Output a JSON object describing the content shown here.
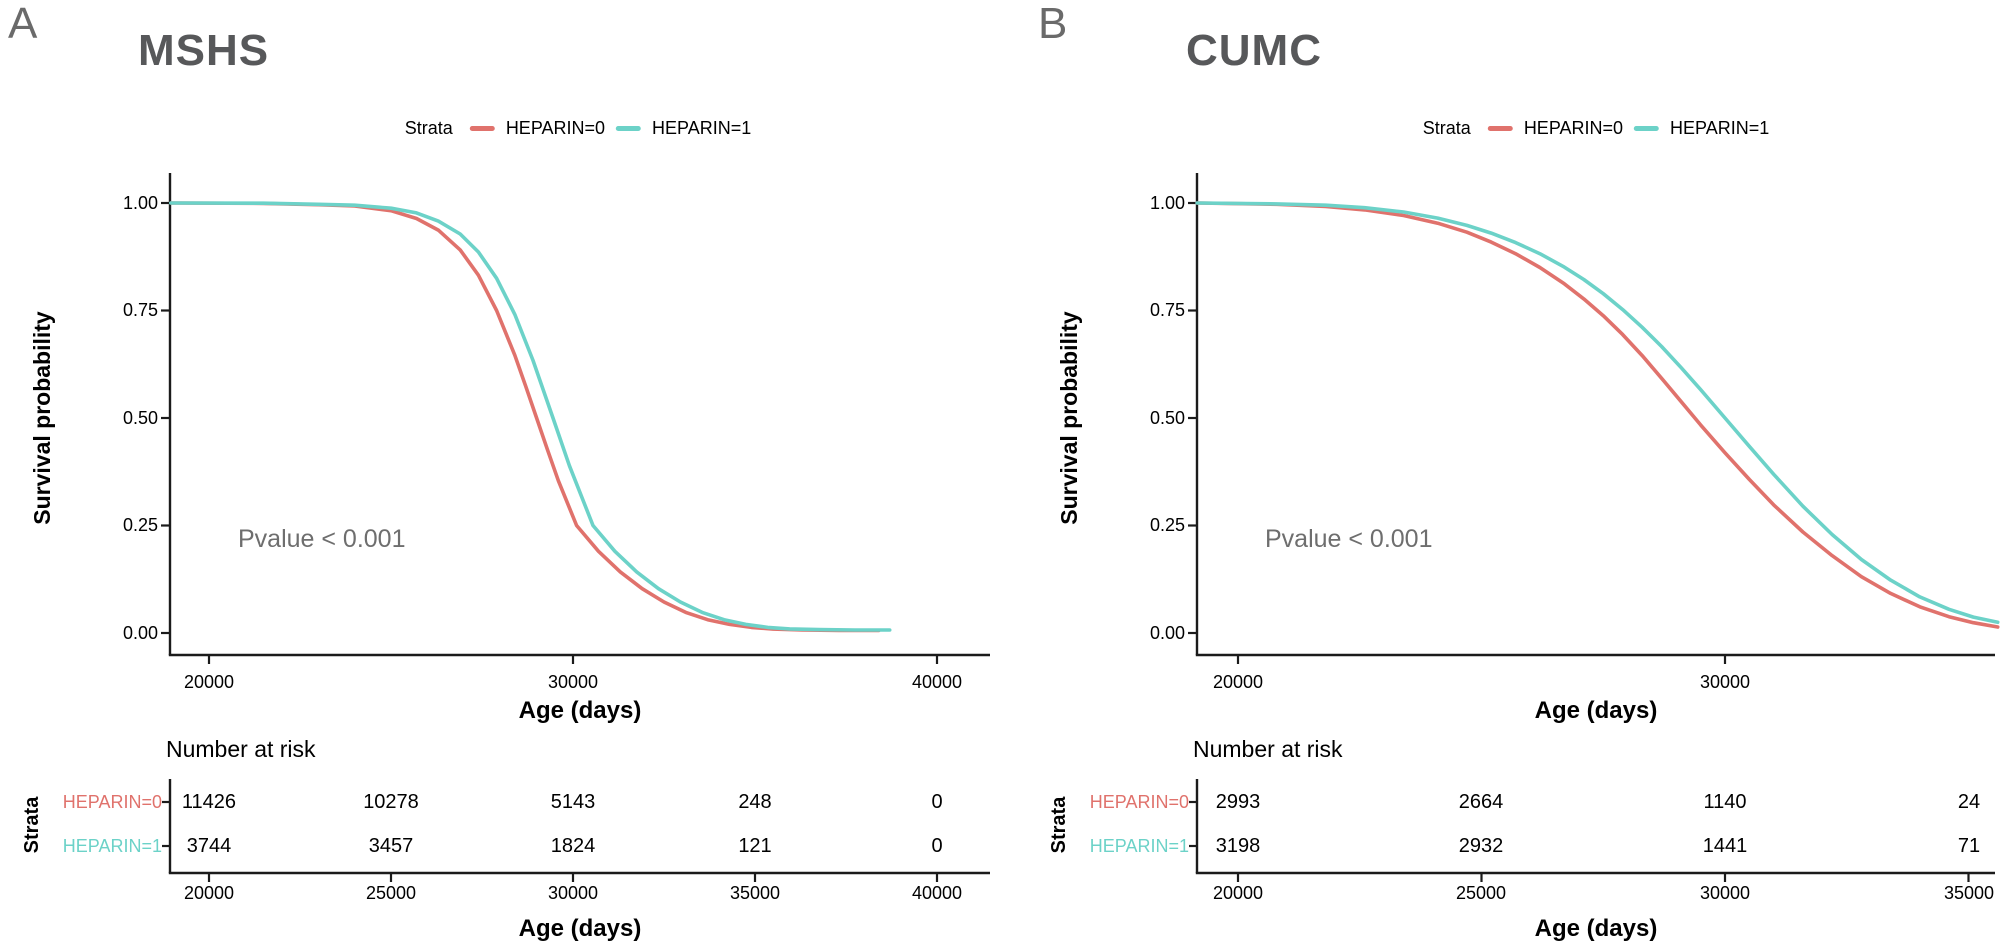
{
  "colors": {
    "heparin0": "#e0726c",
    "heparin1": "#6cd2c8",
    "axis": "#1b1b1b",
    "title_gray": "#57585a",
    "letter_gray": "#6a6a6a",
    "pvalue_gray": "#6e6e6e"
  },
  "panels": [
    {
      "letter": "A",
      "title": "MSHS",
      "legend": {
        "title": "Strata",
        "items": [
          {
            "label": "HEPARIN=0",
            "color": "#e0726c"
          },
          {
            "label": "HEPARIN=1",
            "color": "#6cd2c8"
          }
        ]
      },
      "ylabel": "Survival probability",
      "xlabel": "Age (days)",
      "pvalue": "Pvalue < 0.001",
      "y_ticks": [
        "1.00",
        "0.75",
        "0.50",
        "0.25",
        "0.00"
      ],
      "main_x_ticks": [
        {
          "value": 20000,
          "label": "20000"
        },
        {
          "value": 30000,
          "label": "30000"
        },
        {
          "value": 40000,
          "label": "40000"
        }
      ],
      "risk": {
        "header": "Number at risk",
        "axis_label": "Strata",
        "xlabel": "Age (days)",
        "rows": [
          {
            "label": "HEPARIN=0",
            "color": "#e0726c",
            "values": [
              "11426",
              "10278",
              "5143",
              "248",
              "0"
            ]
          },
          {
            "label": "HEPARIN=1",
            "color": "#6cd2c8",
            "values": [
              "3744",
              "3457",
              "1824",
              "121",
              "0"
            ]
          }
        ],
        "x_ticks": [
          {
            "value": 20000,
            "label": "20000"
          },
          {
            "value": 25000,
            "label": "25000"
          },
          {
            "value": 30000,
            "label": "30000"
          },
          {
            "value": 35000,
            "label": "35000"
          },
          {
            "value": 40000,
            "label": "40000"
          }
        ]
      }
    },
    {
      "letter": "B",
      "title": "CUMC",
      "legend": {
        "title": "Strata",
        "items": [
          {
            "label": "HEPARIN=0",
            "color": "#e0726c"
          },
          {
            "label": "HEPARIN=1",
            "color": "#6cd2c8"
          }
        ]
      },
      "ylabel": "Survival probability",
      "xlabel": "Age (days)",
      "pvalue": "Pvalue < 0.001",
      "y_ticks": [
        "1.00",
        "0.75",
        "0.50",
        "0.25",
        "0.00"
      ],
      "main_x_ticks": [
        {
          "value": 20000,
          "label": "20000"
        },
        {
          "value": 30000,
          "label": "30000"
        }
      ],
      "risk": {
        "header": "Number at risk",
        "axis_label": "Strata",
        "xlabel": "Age (days)",
        "rows": [
          {
            "label": "HEPARIN=0",
            "color": "#e0726c",
            "values": [
              "2993",
              "2664",
              "1140",
              "24"
            ]
          },
          {
            "label": "HEPARIN=1",
            "color": "#6cd2c8",
            "values": [
              "3198",
              "2932",
              "1441",
              "71"
            ]
          }
        ],
        "x_ticks": [
          {
            "value": 20000,
            "label": "20000"
          },
          {
            "value": 25000,
            "label": "25000"
          },
          {
            "value": 30000,
            "label": "30000"
          },
          {
            "value": 35000,
            "label": "35000"
          }
        ]
      }
    }
  ],
  "chart_data": [
    {
      "type": "line",
      "subtype": "kaplan-meier-survival",
      "title": "MSHS",
      "xlabel": "Age (days)",
      "ylabel": "Survival probability",
      "xlim": [
        18950,
        41400
      ],
      "ylim": [
        0,
        1
      ],
      "x_tick_values": [
        20000,
        30000,
        40000
      ],
      "y_tick_values": [
        1.0,
        0.75,
        0.5,
        0.25,
        0.0
      ],
      "annotation": "Pvalue < 0.001",
      "legend_position": "top",
      "grid": false,
      "series": [
        {
          "name": "HEPARIN=0",
          "color": "#e0726c",
          "points": [
            [
              18950,
              1.0
            ],
            [
              21500,
              0.999
            ],
            [
              23000,
              0.996
            ],
            [
              24000,
              0.993
            ],
            [
              25000,
              0.982
            ],
            [
              25700,
              0.964
            ],
            [
              26300,
              0.937
            ],
            [
              26900,
              0.891
            ],
            [
              27400,
              0.832
            ],
            [
              27900,
              0.75
            ],
            [
              28400,
              0.646
            ],
            [
              28700,
              0.574
            ],
            [
              29000,
              0.5
            ],
            [
              29300,
              0.426
            ],
            [
              29600,
              0.354
            ],
            [
              30100,
              0.25
            ],
            [
              30700,
              0.19
            ],
            [
              31300,
              0.142
            ],
            [
              31900,
              0.103
            ],
            [
              32500,
              0.072
            ],
            [
              33100,
              0.048
            ],
            [
              33700,
              0.031
            ],
            [
              34300,
              0.02
            ],
            [
              34900,
              0.013
            ],
            [
              35500,
              0.009
            ],
            [
              36300,
              0.007
            ],
            [
              37300,
              0.006
            ],
            [
              38400,
              0.006
            ]
          ]
        },
        {
          "name": "HEPARIN=1",
          "color": "#6cd2c8",
          "points": [
            [
              18950,
              1.0
            ],
            [
              21500,
              0.9995
            ],
            [
              23000,
              0.997
            ],
            [
              24000,
              0.995
            ],
            [
              25000,
              0.988
            ],
            [
              25700,
              0.977
            ],
            [
              26300,
              0.958
            ],
            [
              26900,
              0.928
            ],
            [
              27400,
              0.886
            ],
            [
              27900,
              0.825
            ],
            [
              28400,
              0.741
            ],
            [
              28900,
              0.634
            ],
            [
              29450,
              0.5
            ],
            [
              29900,
              0.389
            ],
            [
              30550,
              0.25
            ],
            [
              31150,
              0.19
            ],
            [
              31750,
              0.142
            ],
            [
              32350,
              0.103
            ],
            [
              32950,
              0.072
            ],
            [
              33550,
              0.048
            ],
            [
              34150,
              0.031
            ],
            [
              34750,
              0.02
            ],
            [
              35350,
              0.013
            ],
            [
              35950,
              0.0095
            ],
            [
              36750,
              0.0078
            ],
            [
              37750,
              0.007
            ],
            [
              38700,
              0.007
            ]
          ]
        }
      ],
      "number_at_risk": {
        "times": [
          20000,
          25000,
          30000,
          35000,
          40000
        ],
        "HEPARIN=0": [
          11426,
          10278,
          5143,
          248,
          0
        ],
        "HEPARIN=1": [
          3744,
          3457,
          1824,
          121,
          0
        ]
      }
    },
    {
      "type": "line",
      "subtype": "kaplan-meier-survival",
      "title": "CUMC",
      "xlabel": "Age (days)",
      "ylabel": "Survival probability",
      "xlim": [
        19160,
        35900
      ],
      "ylim": [
        0,
        1
      ],
      "x_tick_values": [
        20000,
        30000
      ],
      "y_tick_values": [
        1.0,
        0.75,
        0.5,
        0.25,
        0.0
      ],
      "annotation": "Pvalue < 0.001",
      "legend_position": "top",
      "grid": false,
      "series": [
        {
          "name": "HEPARIN=0",
          "color": "#e0726c",
          "points": [
            [
              19160,
              1.0
            ],
            [
              20800,
              0.997
            ],
            [
              21800,
              0.992
            ],
            [
              22600,
              0.984
            ],
            [
              23400,
              0.971
            ],
            [
              24100,
              0.953
            ],
            [
              24700,
              0.932
            ],
            [
              25200,
              0.909
            ],
            [
              25700,
              0.882
            ],
            [
              26200,
              0.85
            ],
            [
              26700,
              0.812
            ],
            [
              27100,
              0.777
            ],
            [
              27500,
              0.738
            ],
            [
              27900,
              0.694
            ],
            [
              28300,
              0.645
            ],
            [
              28700,
              0.592
            ],
            [
              29100,
              0.538
            ],
            [
              29500,
              0.484
            ],
            [
              30000,
              0.419
            ],
            [
              30500,
              0.357
            ],
            [
              31000,
              0.298
            ],
            [
              31600,
              0.235
            ],
            [
              32200,
              0.18
            ],
            [
              32800,
              0.131
            ],
            [
              33400,
              0.092
            ],
            [
              34000,
              0.061
            ],
            [
              34600,
              0.038
            ],
            [
              35100,
              0.024
            ],
            [
              35600,
              0.014
            ]
          ]
        },
        {
          "name": "HEPARIN=1",
          "color": "#6cd2c8",
          "points": [
            [
              19160,
              1.0
            ],
            [
              20800,
              0.998
            ],
            [
              21800,
              0.995
            ],
            [
              22600,
              0.989
            ],
            [
              23400,
              0.979
            ],
            [
              24100,
              0.965
            ],
            [
              24700,
              0.948
            ],
            [
              25200,
              0.93
            ],
            [
              25700,
              0.908
            ],
            [
              26200,
              0.882
            ],
            [
              26700,
              0.851
            ],
            [
              27100,
              0.822
            ],
            [
              27500,
              0.789
            ],
            [
              27900,
              0.752
            ],
            [
              28300,
              0.711
            ],
            [
              28700,
              0.666
            ],
            [
              29100,
              0.617
            ],
            [
              29500,
              0.566
            ],
            [
              30000,
              0.5
            ],
            [
              30500,
              0.434
            ],
            [
              31000,
              0.369
            ],
            [
              31600,
              0.295
            ],
            [
              32200,
              0.229
            ],
            [
              32800,
              0.171
            ],
            [
              33400,
              0.123
            ],
            [
              34000,
              0.084
            ],
            [
              34600,
              0.055
            ],
            [
              35100,
              0.037
            ],
            [
              35600,
              0.025
            ]
          ]
        }
      ],
      "number_at_risk": {
        "times": [
          20000,
          25000,
          30000,
          35000
        ],
        "HEPARIN=0": [
          2993,
          2664,
          1140,
          24
        ],
        "HEPARIN=1": [
          3198,
          2932,
          1441,
          71
        ]
      }
    }
  ]
}
